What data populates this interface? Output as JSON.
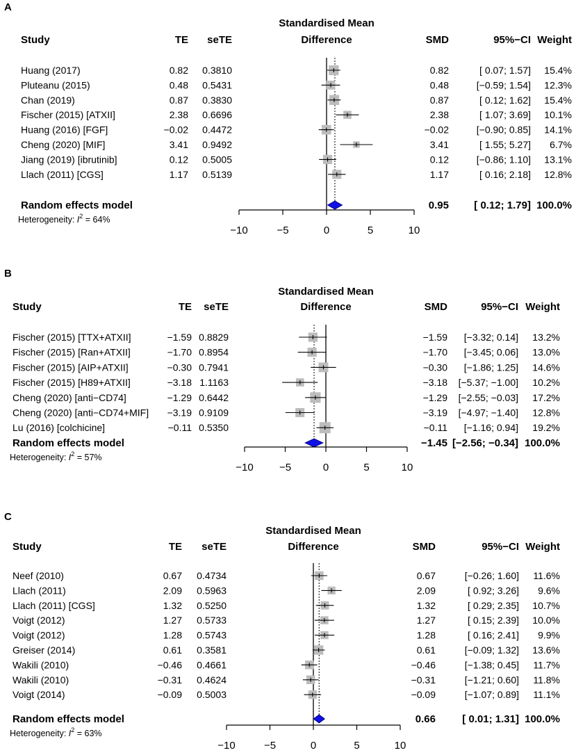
{
  "colors": {
    "box": "#bdbdbd",
    "diamond": "#1010e6",
    "line": "#000000"
  },
  "chart_data": [
    {
      "type": "forest",
      "panel": "A",
      "title": "Standardised Mean Difference",
      "title_line1": "Standardised Mean",
      "title_line2": "Difference",
      "headers": {
        "study": "Study",
        "te": "TE",
        "sete": "seTE",
        "smd": "SMD",
        "ci": "95%−CI",
        "weight": "Weight"
      },
      "xlim": [
        -10,
        10
      ],
      "ticks": [
        -10,
        -5,
        0,
        5,
        10
      ],
      "tick_labels": [
        "−10",
        "−5",
        "0",
        "5",
        "10"
      ],
      "studies": [
        {
          "study": "Huang (2017)",
          "te": "0.82",
          "sete": "0.3810",
          "smd": "0.82",
          "ci": "[ 0.07; 1.57]",
          "weight": "15.4%",
          "est": 0.82,
          "lo": 0.07,
          "hi": 1.57,
          "w": 15.4
        },
        {
          "study": "Pluteanu (2015)",
          "te": "0.48",
          "sete": "0.5431",
          "smd": "0.48",
          "ci": "[−0.59; 1.54]",
          "weight": "12.3%",
          "est": 0.48,
          "lo": -0.59,
          "hi": 1.54,
          "w": 12.3
        },
        {
          "study": "Chan (2019)",
          "te": "0.87",
          "sete": "0.3830",
          "smd": "0.87",
          "ci": "[ 0.12; 1.62]",
          "weight": "15.4%",
          "est": 0.87,
          "lo": 0.12,
          "hi": 1.62,
          "w": 15.4
        },
        {
          "study": "Fischer (2015) [ATXII]",
          "te": "2.38",
          "sete": "0.6696",
          "smd": "2.38",
          "ci": "[ 1.07; 3.69]",
          "weight": "10.1%",
          "est": 2.38,
          "lo": 1.07,
          "hi": 3.69,
          "w": 10.1
        },
        {
          "study": "Huang (2016) [FGF]",
          "te": "−0.02",
          "sete": "0.4472",
          "smd": "−0.02",
          "ci": "[−0.90; 0.85]",
          "weight": "14.1%",
          "est": -0.02,
          "lo": -0.9,
          "hi": 0.85,
          "w": 14.1
        },
        {
          "study": "Cheng (2020) [MIF]",
          "te": "3.41",
          "sete": "0.9492",
          "smd": "3.41",
          "ci": "[ 1.55; 5.27]",
          "weight": "6.7%",
          "est": 3.41,
          "lo": 1.55,
          "hi": 5.27,
          "w": 6.7
        },
        {
          "study": "Jiang (2019) [ibrutinib]",
          "te": "0.12",
          "sete": "0.5005",
          "smd": "0.12",
          "ci": "[−0.86; 1.10]",
          "weight": "13.1%",
          "est": 0.12,
          "lo": -0.86,
          "hi": 1.1,
          "w": 13.1
        },
        {
          "study": "Llach (2011) [CGS]",
          "te": "1.17",
          "sete": "0.5139",
          "smd": "1.17",
          "ci": "[ 0.16; 2.18]",
          "weight": "12.8%",
          "est": 1.17,
          "lo": 0.16,
          "hi": 2.18,
          "w": 12.8
        }
      ],
      "summary": {
        "label": "Random effects model",
        "smd": "0.95",
        "ci": "[ 0.12; 1.79]",
        "weight": "100.0%",
        "est": 0.95,
        "lo": 0.12,
        "hi": 1.79
      },
      "heterogeneity": {
        "prefix": "Heterogeneity: ",
        "symbol": "I",
        "sup": "2",
        "value": " = 64%"
      }
    },
    {
      "type": "forest",
      "panel": "B",
      "title": "Standardised Mean Difference",
      "title_line1": "Standardised Mean",
      "title_line2": "Difference",
      "headers": {
        "study": "Study",
        "te": "TE",
        "sete": "seTE",
        "smd": "SMD",
        "ci": "95%−CI",
        "weight": "Weight"
      },
      "xlim": [
        -10,
        10
      ],
      "ticks": [
        -10,
        -5,
        0,
        5,
        10
      ],
      "tick_labels": [
        "−10",
        "−5",
        "0",
        "5",
        "10"
      ],
      "studies": [
        {
          "study": "Fischer (2015) [TTX+ATXII]",
          "te": "−1.59",
          "sete": "0.8829",
          "smd": "−1.59",
          "ci": "[−3.32; 0.14]",
          "weight": "13.2%",
          "est": -1.59,
          "lo": -3.32,
          "hi": 0.14,
          "w": 13.2
        },
        {
          "study": "Fischer (2015) [Ran+ATXII]",
          "te": "−1.70",
          "sete": "0.8954",
          "smd": "−1.70",
          "ci": "[−3.45; 0.06]",
          "weight": "13.0%",
          "est": -1.7,
          "lo": -3.45,
          "hi": 0.06,
          "w": 13.0
        },
        {
          "study": "Fischer (2015) [AIP+ATXII]",
          "te": "−0.30",
          "sete": "0.7941",
          "smd": "−0.30",
          "ci": "[−1.86; 1.25]",
          "weight": "14.6%",
          "est": -0.3,
          "lo": -1.86,
          "hi": 1.25,
          "w": 14.6
        },
        {
          "study": "Fischer (2015) [H89+ATXII]",
          "te": "−3.18",
          "sete": "1.1163",
          "smd": "−3.18",
          "ci": "[−5.37; −1.00]",
          "weight": "10.2%",
          "est": -3.18,
          "lo": -5.37,
          "hi": -1.0,
          "w": 10.2
        },
        {
          "study": "Cheng (2020) [anti−CD74]",
          "te": "−1.29",
          "sete": "0.6442",
          "smd": "−1.29",
          "ci": "[−2.55; −0.03]",
          "weight": "17.2%",
          "est": -1.29,
          "lo": -2.55,
          "hi": -0.03,
          "w": 17.2
        },
        {
          "study": "Cheng (2020) [anti−CD74+MIF]",
          "te": "−3.19",
          "sete": "0.9109",
          "smd": "−3.19",
          "ci": "[−4.97; −1.40]",
          "weight": "12.8%",
          "est": -3.19,
          "lo": -4.97,
          "hi": -1.4,
          "w": 12.8
        },
        {
          "study": "Lu (2016) [colchicine]",
          "te": "−0.11",
          "sete": "0.5350",
          "smd": "−0.11",
          "ci": "[−1.16; 0.94]",
          "weight": "19.2%",
          "est": -0.11,
          "lo": -1.16,
          "hi": 0.94,
          "w": 19.2
        }
      ],
      "summary": {
        "label": "Random effects model",
        "smd": "−1.45",
        "ci": "[−2.56; −0.34]",
        "weight": "100.0%",
        "est": -1.45,
        "lo": -2.56,
        "hi": -0.34
      },
      "heterogeneity": {
        "prefix": "Heterogeneity: ",
        "symbol": "I",
        "sup": "2",
        "value": " = 57%"
      }
    },
    {
      "type": "forest",
      "panel": "C",
      "title": "Standardised Mean Difference",
      "title_line1": "Standardised Mean",
      "title_line2": "Difference",
      "headers": {
        "study": "Study",
        "te": "TE",
        "sete": "seTE",
        "smd": "SMD",
        "ci": "95%−CI",
        "weight": "Weight"
      },
      "xlim": [
        -10,
        10
      ],
      "ticks": [
        -10,
        -5,
        0,
        5,
        10
      ],
      "tick_labels": [
        "−10",
        "−5",
        "0",
        "5",
        "10"
      ],
      "studies": [
        {
          "study": "Neef (2010)",
          "te": "0.67",
          "sete": "0.4734",
          "smd": "0.67",
          "ci": "[−0.26; 1.60]",
          "weight": "11.6%",
          "est": 0.67,
          "lo": -0.26,
          "hi": 1.6,
          "w": 11.6
        },
        {
          "study": "Llach (2011)",
          "te": "2.09",
          "sete": "0.5963",
          "smd": "2.09",
          "ci": "[ 0.92; 3.26]",
          "weight": "9.6%",
          "est": 2.09,
          "lo": 0.92,
          "hi": 3.26,
          "w": 9.6
        },
        {
          "study": "Llach (2011) [CGS]",
          "te": "1.32",
          "sete": "0.5250",
          "smd": "1.32",
          "ci": "[ 0.29; 2.35]",
          "weight": "10.7%",
          "est": 1.32,
          "lo": 0.29,
          "hi": 2.35,
          "w": 10.7
        },
        {
          "study": "Voigt (2012)",
          "te": "1.27",
          "sete": "0.5733",
          "smd": "1.27",
          "ci": "[ 0.15; 2.39]",
          "weight": "10.0%",
          "est": 1.27,
          "lo": 0.15,
          "hi": 2.39,
          "w": 10.0
        },
        {
          "study": "Voigt (2012)",
          "te": "1.28",
          "sete": "0.5743",
          "smd": "1.28",
          "ci": "[ 0.16; 2.41]",
          "weight": "9.9%",
          "est": 1.28,
          "lo": 0.16,
          "hi": 2.41,
          "w": 9.9
        },
        {
          "study": "Greiser (2014)",
          "te": "0.61",
          "sete": "0.3581",
          "smd": "0.61",
          "ci": "[−0.09; 1.32]",
          "weight": "13.6%",
          "est": 0.61,
          "lo": -0.09,
          "hi": 1.32,
          "w": 13.6
        },
        {
          "study": "Wakili (2010)",
          "te": "−0.46",
          "sete": "0.4661",
          "smd": "−0.46",
          "ci": "[−1.38; 0.45]",
          "weight": "11.7%",
          "est": -0.46,
          "lo": -1.38,
          "hi": 0.45,
          "w": 11.7
        },
        {
          "study": "Wakili (2010)",
          "te": "−0.31",
          "sete": "0.4624",
          "smd": "−0.31",
          "ci": "[−1.21; 0.60]",
          "weight": "11.8%",
          "est": -0.31,
          "lo": -1.21,
          "hi": 0.6,
          "w": 11.8
        },
        {
          "study": "Voigt (2014)",
          "te": "−0.09",
          "sete": "0.5003",
          "smd": "−0.09",
          "ci": "[−1.07; 0.89]",
          "weight": "11.1%",
          "est": -0.09,
          "lo": -1.07,
          "hi": 0.89,
          "w": 11.1
        }
      ],
      "summary": {
        "label": "Random effects model",
        "smd": "0.66",
        "ci": "[ 0.01; 1.31]",
        "weight": "100.0%",
        "est": 0.66,
        "lo": 0.01,
        "hi": 1.31
      },
      "heterogeneity": {
        "prefix": "Heterogeneity: ",
        "symbol": "I",
        "sup": "2",
        "value": " = 63%"
      }
    }
  ]
}
